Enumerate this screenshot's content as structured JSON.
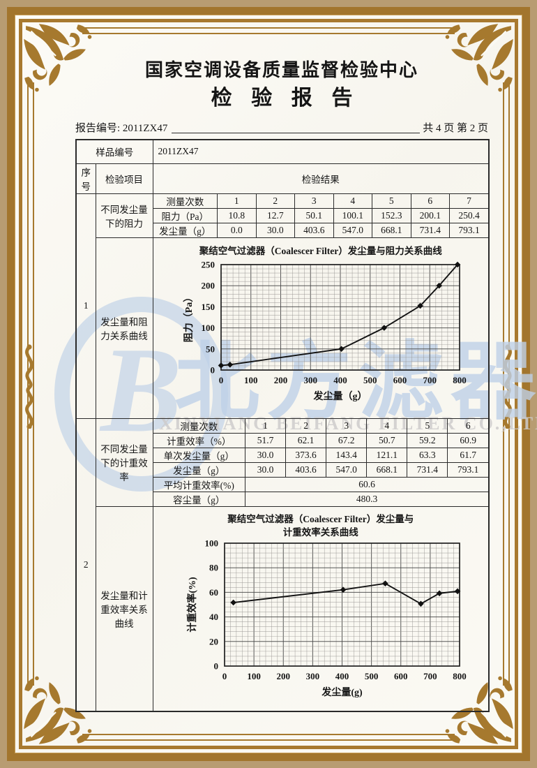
{
  "page": {
    "main_title": "国家空调设备质量监督检验中心",
    "report_title": "检验报告",
    "report_no": "报告编号: 2011ZX47",
    "page_info": "共 4 页 第 2 页"
  },
  "watermark": {
    "logo_letter": "B",
    "cn_text": "北方滤器",
    "en_text": "XINXIANG BEIFANG FILTER CO.,LTD.",
    "blue": "#bccfe7",
    "gray": "#cecccc"
  },
  "frame": {
    "gold": "#a6792e",
    "tan": "#b89c72"
  },
  "table": {
    "sample_label": "样品编号",
    "sample_value": "2011ZX47",
    "col_no": "序号",
    "col_item": "检验项目",
    "col_result": "检验结果",
    "sections": [
      {
        "no": "1",
        "item_data": "不同发尘量下的阻力",
        "item_chart": "发尘量和阻力关系曲线"
      },
      {
        "no": "2",
        "item_data": "不同发尘量下的计重效率",
        "item_chart": "发尘量和计重效率关系曲线"
      }
    ],
    "t1": {
      "rows": [
        {
          "label": "测量次数",
          "values": [
            "1",
            "2",
            "3",
            "4",
            "5",
            "6",
            "7"
          ]
        },
        {
          "label": "阻力（Pa）",
          "values": [
            "10.8",
            "12.7",
            "50.1",
            "100.1",
            "152.3",
            "200.1",
            "250.4"
          ]
        },
        {
          "label": "发尘量（g）",
          "values": [
            "0.0",
            "30.0",
            "403.6",
            "547.0",
            "668.1",
            "731.4",
            "793.1"
          ]
        }
      ]
    },
    "t2": {
      "rows": [
        {
          "label": "测量次数",
          "values": [
            "1",
            "2",
            "3",
            "4",
            "5",
            "6"
          ]
        },
        {
          "label": "计重效率（%）",
          "values": [
            "51.7",
            "62.1",
            "67.2",
            "50.7",
            "59.2",
            "60.9"
          ]
        },
        {
          "label": "单次发尘量（g）",
          "values": [
            "30.0",
            "373.6",
            "143.4",
            "121.1",
            "63.3",
            "61.7"
          ]
        },
        {
          "label": "发尘量（g）",
          "values": [
            "30.0",
            "403.6",
            "547.0",
            "668.1",
            "731.4",
            "793.1"
          ]
        }
      ],
      "avg_label": "平均计重效率(%)",
      "avg_value": "60.6",
      "cap_label": "容尘量（g）",
      "cap_value": "480.3"
    }
  },
  "chart_data": [
    {
      "type": "line",
      "title": "聚结空气过滤器（Coalescer Filter）发尘量与阻力关系曲线",
      "xlabel": "发尘量（g）",
      "ylabel": "阻力（Pa）",
      "x": [
        0,
        30,
        403.6,
        547.0,
        668.1,
        731.4,
        793.1
      ],
      "y": [
        10.8,
        12.7,
        50.1,
        100.1,
        152.3,
        200.1,
        250.4
      ],
      "xlim": [
        0,
        800
      ],
      "ylim": [
        0,
        250
      ],
      "xticks": [
        0,
        100,
        200,
        300,
        400,
        500,
        600,
        700,
        800
      ],
      "yticks": [
        0,
        50,
        100,
        150,
        200,
        250
      ],
      "grid": true,
      "legend": "none",
      "marker": "diamond",
      "line_color": "#111111"
    },
    {
      "type": "line",
      "title": "聚结空气过滤器（Coalescer Filter）发尘量与",
      "title2": "计重效率关系曲线",
      "xlabel": "发尘量(g)",
      "ylabel": "计重效率(%)",
      "x": [
        30,
        403.6,
        547.0,
        668.1,
        731.4,
        793.1
      ],
      "y": [
        51.7,
        62.1,
        67.2,
        50.7,
        59.2,
        60.9
      ],
      "xlim": [
        0,
        800
      ],
      "ylim": [
        0,
        100
      ],
      "xticks": [
        0,
        100,
        200,
        300,
        400,
        500,
        600,
        700,
        800
      ],
      "yticks": [
        0,
        20,
        40,
        60,
        80,
        100
      ],
      "grid": true,
      "legend": "none",
      "marker": "diamond",
      "line_color": "#111111"
    }
  ]
}
